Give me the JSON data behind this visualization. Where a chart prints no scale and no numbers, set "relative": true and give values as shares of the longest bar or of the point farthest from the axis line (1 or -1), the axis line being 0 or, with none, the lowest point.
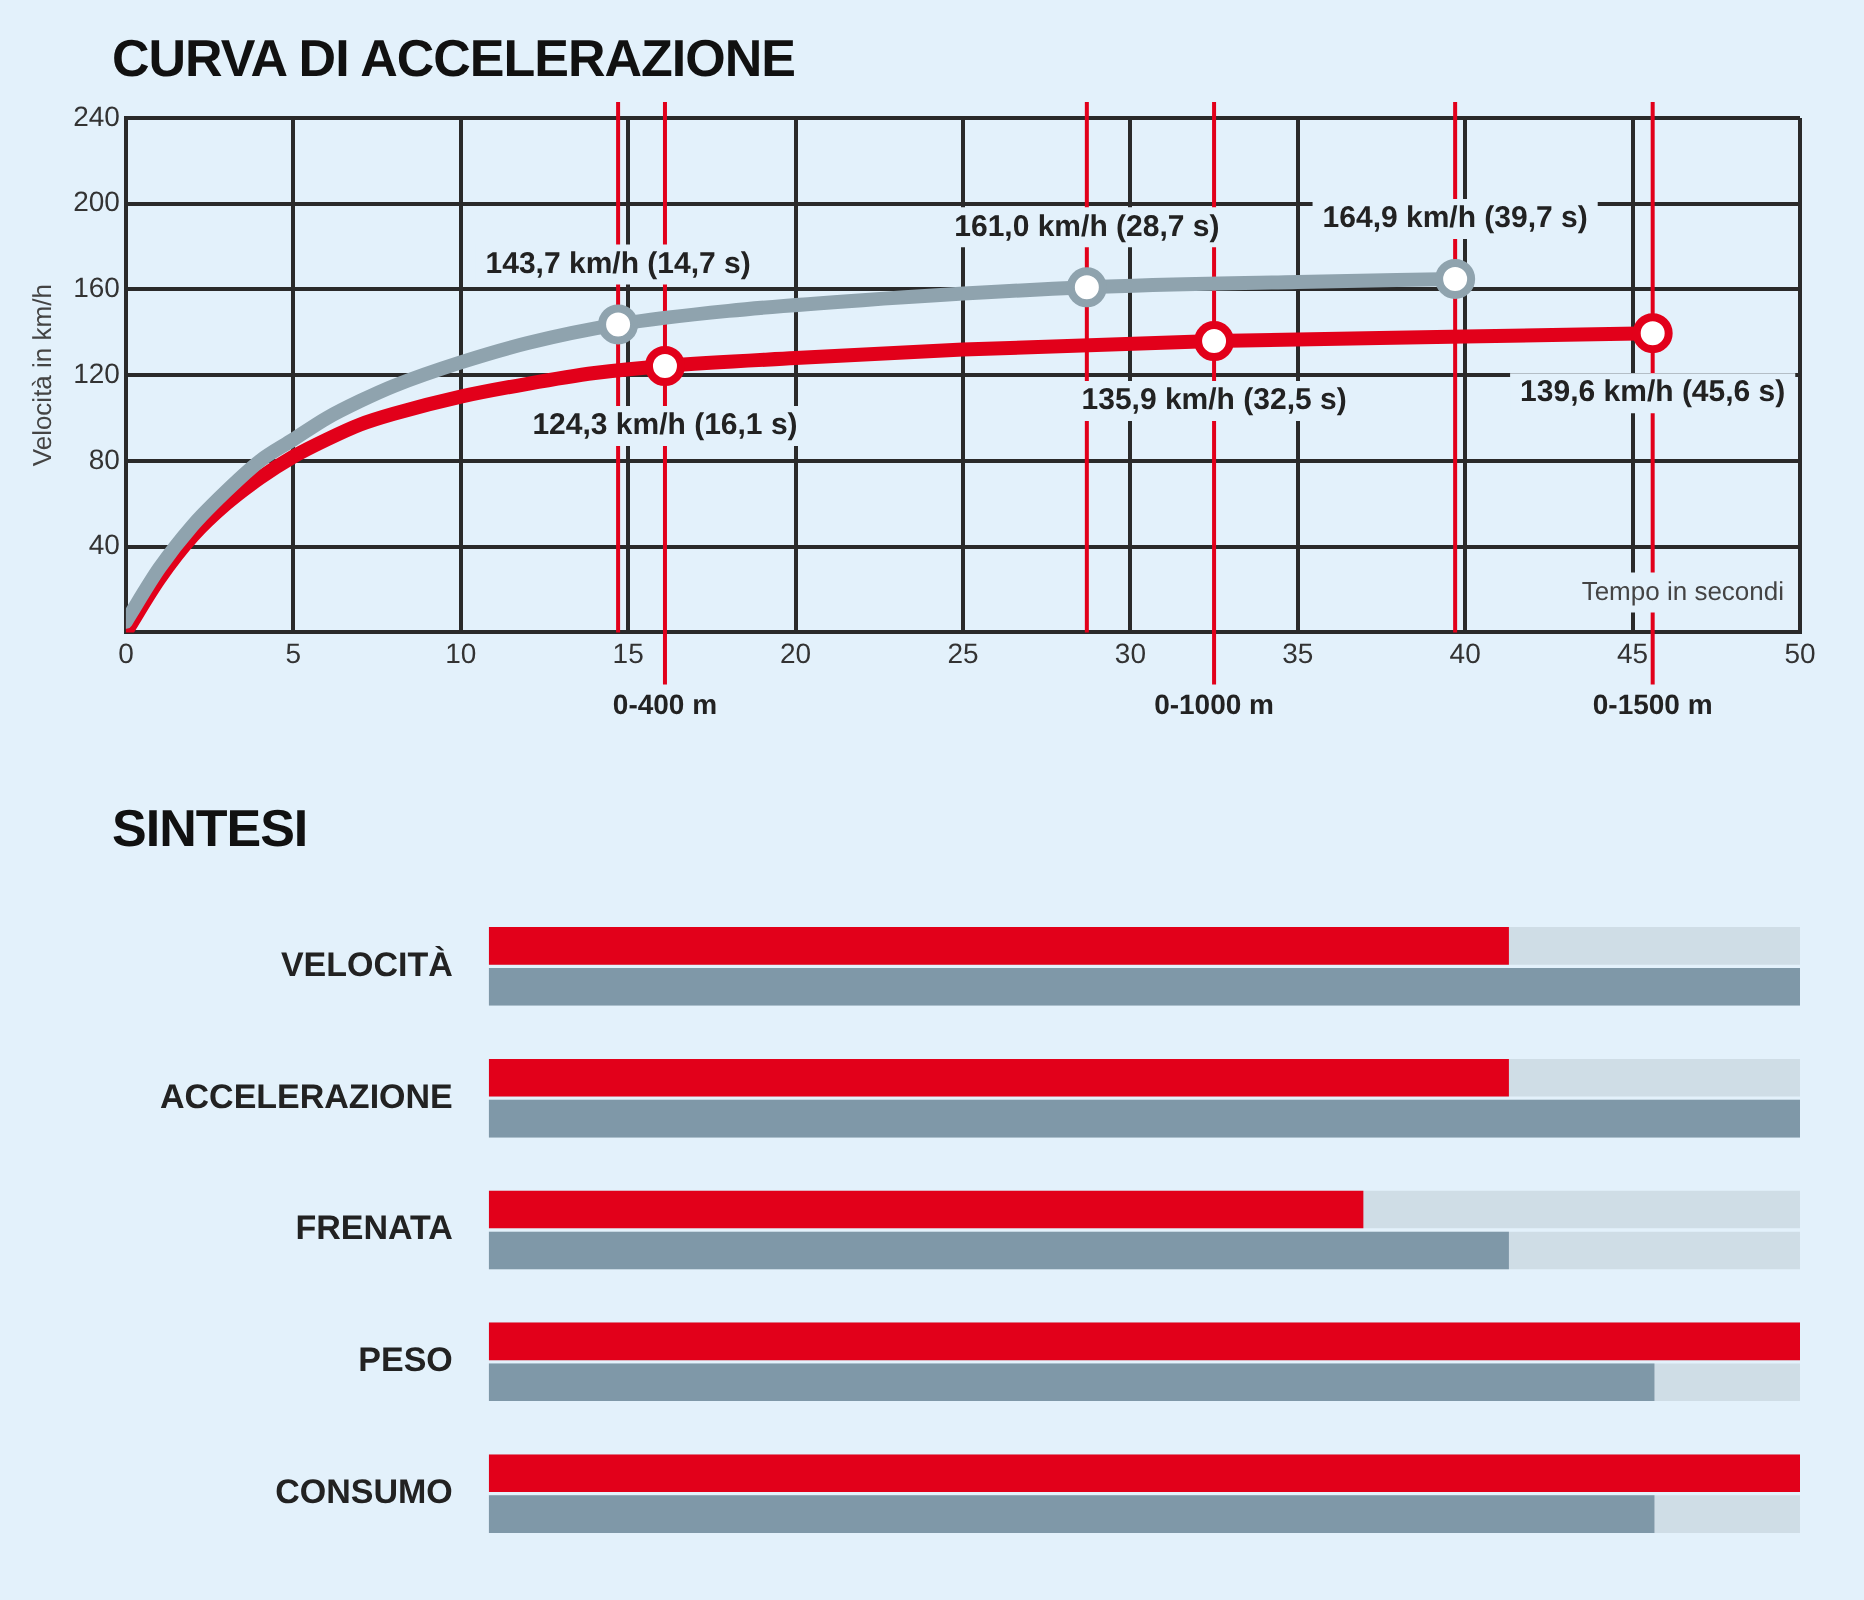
{
  "chart_data": [
    {
      "type": "line",
      "title": "CURVA DI ACCELERAZIONE",
      "xlabel": "Tempo in secondi",
      "ylabel": "Velocità in km/h",
      "xlim": [
        0,
        50
      ],
      "xticks": [
        0,
        5,
        10,
        15,
        20,
        25,
        30,
        35,
        40,
        45,
        50
      ],
      "ylim": [
        0,
        240
      ],
      "yticks": [
        40,
        80,
        120,
        160,
        200,
        240
      ],
      "grid": true,
      "legend": false,
      "marker": "none",
      "line_style": "solid",
      "series": [
        {
          "color": "#8fa3ae",
          "x": [
            0,
            1,
            2,
            3,
            4,
            5,
            6,
            7,
            8,
            10,
            12,
            14.7,
            18,
            22,
            28.7,
            35,
            39.7
          ],
          "values": [
            5,
            30,
            50,
            66,
            80,
            90,
            100,
            108,
            115,
            126,
            135,
            143.7,
            150,
            155,
            161,
            163.5,
            164.9
          ]
        },
        {
          "color": "#e2001a",
          "x": [
            0,
            1,
            2,
            3,
            4,
            5,
            6,
            7,
            8,
            10,
            12,
            14,
            16.1,
            20,
            25,
            32.5,
            40,
            45.6
          ],
          "values": [
            0,
            25,
            45,
            60,
            72,
            82,
            90,
            97,
            102,
            110,
            116,
            121,
            124.3,
            128,
            132,
            135.9,
            138,
            139.6
          ]
        }
      ],
      "ref_lines": [
        {
          "axis": "x",
          "value": 14.7,
          "color": "#e2001a"
        },
        {
          "axis": "x",
          "value": 16.1,
          "label": "0-400 m",
          "color": "#e2001a"
        },
        {
          "axis": "x",
          "value": 28.7,
          "color": "#e2001a"
        },
        {
          "axis": "x",
          "value": 32.5,
          "label": "0-1000 m",
          "color": "#e2001a"
        },
        {
          "axis": "x",
          "value": 39.7,
          "color": "#e2001a"
        },
        {
          "axis": "x",
          "value": 45.6,
          "label": "0-1500 m",
          "color": "#e2001a"
        }
      ],
      "annotations": [
        {
          "text": "143,7 km/h (14,7 s)",
          "x": 14.7,
          "y": 143.7
        },
        {
          "text": "161,0 km/h (28,7 s)",
          "x": 28.7,
          "y": 161
        },
        {
          "text": "164,9 km/h (39,7 s)",
          "x": 39.7,
          "y": 164.9
        },
        {
          "text": "124,3 km/h (16,1 s)",
          "x": 16.1,
          "y": 124.3
        },
        {
          "text": "135,9 km/h (32,5 s)",
          "x": 32.5,
          "y": 135.9
        },
        {
          "text": "139,6 km/h (45,6 s)",
          "x": 45.6,
          "y": 139.6
        }
      ]
    },
    {
      "type": "bar",
      "title": "SINTESI",
      "orientation": "horizontal",
      "relative": true,
      "legend": false,
      "categories": [
        "VELOCITÀ",
        "ACCELERAZIONE",
        "FRENATA",
        "PESO",
        "CONSUMO"
      ],
      "series": [
        {
          "color": "#e2001a",
          "values": [
            0.778,
            0.778,
            0.667,
            1,
            1
          ]
        },
        {
          "color": "#7f98a8",
          "values": [
            1,
            1,
            0.778,
            0.889,
            0.889
          ]
        }
      ]
    }
  ]
}
